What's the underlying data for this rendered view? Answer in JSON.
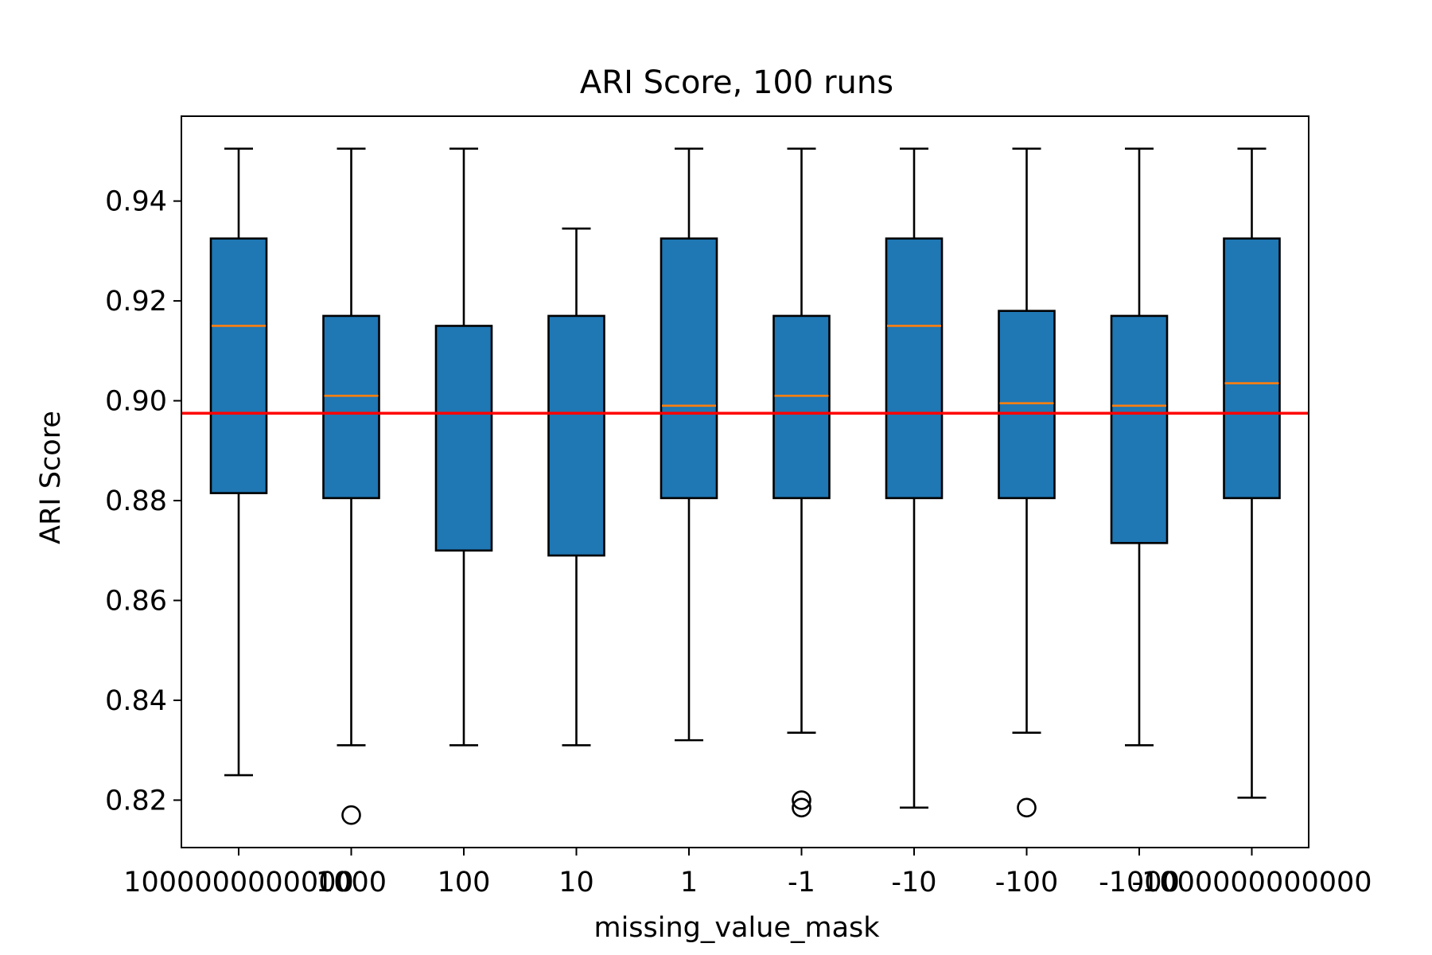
{
  "chart_data": {
    "type": "box",
    "title": "ARI Score, 100 runs",
    "xlabel": "missing_value_mask",
    "ylabel": "ARI Score",
    "ylim": [
      0.8105,
      0.957
    ],
    "yticks": [
      0.82,
      0.84,
      0.86,
      0.88,
      0.9,
      0.92,
      0.94
    ],
    "ytick_labels": [
      "0.82",
      "0.84",
      "0.86",
      "0.88",
      "0.90",
      "0.92",
      "0.94"
    ],
    "categories": [
      "1000000000000",
      "1000",
      "100",
      "10",
      "1",
      "-1",
      "-10",
      "-100",
      "-1000",
      "-1000000000000"
    ],
    "boxes": [
      {
        "whisker_low": 0.825,
        "q1": 0.8815,
        "median": 0.915,
        "q3": 0.9325,
        "whisker_high": 0.9505,
        "outliers": []
      },
      {
        "whisker_low": 0.831,
        "q1": 0.8805,
        "median": 0.901,
        "q3": 0.917,
        "whisker_high": 0.9505,
        "outliers": [
          0.817
        ]
      },
      {
        "whisker_low": 0.831,
        "q1": 0.87,
        "median": 0.8975,
        "q3": 0.915,
        "whisker_high": 0.9505,
        "outliers": []
      },
      {
        "whisker_low": 0.831,
        "q1": 0.869,
        "median": 0.8975,
        "q3": 0.917,
        "whisker_high": 0.9345,
        "outliers": []
      },
      {
        "whisker_low": 0.832,
        "q1": 0.8805,
        "median": 0.899,
        "q3": 0.9325,
        "whisker_high": 0.9505,
        "outliers": []
      },
      {
        "whisker_low": 0.8335,
        "q1": 0.8805,
        "median": 0.901,
        "q3": 0.917,
        "whisker_high": 0.9505,
        "outliers": [
          0.82,
          0.8185
        ]
      },
      {
        "whisker_low": 0.8185,
        "q1": 0.8805,
        "median": 0.915,
        "q3": 0.9325,
        "whisker_high": 0.9505,
        "outliers": []
      },
      {
        "whisker_low": 0.8335,
        "q1": 0.8805,
        "median": 0.8995,
        "q3": 0.918,
        "whisker_high": 0.9505,
        "outliers": [
          0.8185
        ]
      },
      {
        "whisker_low": 0.831,
        "q1": 0.8715,
        "median": 0.899,
        "q3": 0.917,
        "whisker_high": 0.9505,
        "outliers": []
      },
      {
        "whisker_low": 0.8205,
        "q1": 0.8805,
        "median": 0.9035,
        "q3": 0.9325,
        "whisker_high": 0.9505,
        "outliers": []
      }
    ],
    "reference_line": {
      "y": 0.8975,
      "color": "#ff0000"
    },
    "colors": {
      "box_fill": "#1f77b4",
      "median": "#ff7f0e",
      "stroke": "#000000",
      "reference": "#ff0000"
    },
    "grid": false,
    "legend": "none"
  }
}
